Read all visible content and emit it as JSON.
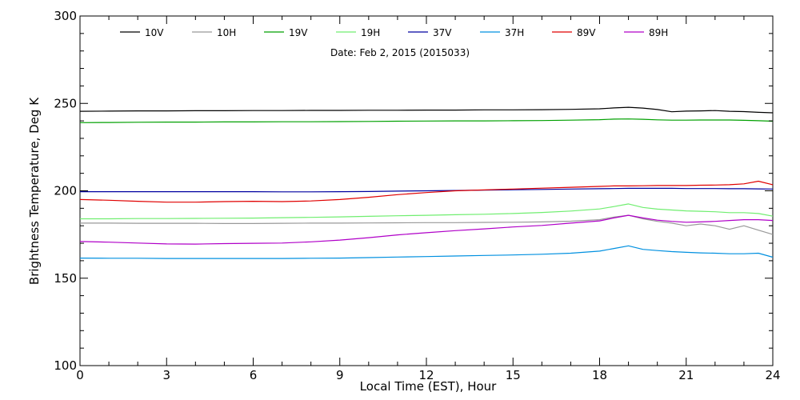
{
  "chart_data": {
    "type": "line",
    "xlabel": "Local Time (EST), Hour",
    "ylabel": "Brightness Temperature, Deg K",
    "annotation": "Date: Feb  2, 2015 (2015033)",
    "xlim": [
      0,
      24
    ],
    "ylim": [
      100,
      300
    ],
    "xticks": [
      0,
      3,
      6,
      9,
      12,
      15,
      18,
      21,
      24
    ],
    "yticks": [
      100,
      150,
      200,
      250,
      300
    ],
    "grid": false,
    "legend_position": "top",
    "x": [
      0,
      1,
      2,
      3,
      4,
      5,
      6,
      7,
      8,
      9,
      10,
      11,
      12,
      13,
      14,
      15,
      16,
      17,
      18,
      18.5,
      19,
      19.5,
      20,
      20.5,
      21,
      21.5,
      22,
      22.5,
      23,
      23.5,
      24
    ],
    "series": [
      {
        "name": "10V",
        "color": "#000000",
        "values": [
          245.5,
          245.6,
          245.7,
          245.7,
          245.8,
          245.8,
          245.9,
          245.9,
          246.0,
          246.0,
          246.1,
          246.1,
          246.2,
          246.2,
          246.3,
          246.3,
          246.4,
          246.6,
          246.9,
          247.4,
          247.8,
          247.3,
          246.5,
          245.2,
          245.6,
          245.7,
          245.9,
          245.5,
          245.3,
          244.9,
          244.6
        ]
      },
      {
        "name": "10H",
        "color": "#999999",
        "values": [
          181.5,
          181.5,
          181.4,
          181.4,
          181.4,
          181.3,
          181.3,
          181.4,
          181.5,
          181.5,
          181.6,
          181.7,
          181.8,
          181.8,
          181.9,
          182.0,
          182.2,
          182.6,
          183.5,
          185.0,
          186.0,
          184.0,
          182.5,
          181.5,
          180.0,
          181.0,
          180.0,
          178.0,
          180.0,
          177.5,
          175.0
        ]
      },
      {
        "name": "19V",
        "color": "#00a000",
        "values": [
          239.0,
          239.1,
          239.2,
          239.3,
          239.3,
          239.4,
          239.4,
          239.5,
          239.5,
          239.6,
          239.7,
          239.8,
          239.9,
          240.0,
          240.0,
          240.1,
          240.2,
          240.4,
          240.7,
          241.0,
          241.1,
          240.9,
          240.6,
          240.4,
          240.4,
          240.5,
          240.5,
          240.5,
          240.3,
          240.1,
          239.8
        ]
      },
      {
        "name": "19H",
        "color": "#70ee70",
        "values": [
          184.0,
          184.0,
          184.1,
          184.1,
          184.2,
          184.3,
          184.4,
          184.6,
          184.8,
          185.1,
          185.4,
          185.7,
          186.0,
          186.3,
          186.6,
          187.0,
          187.6,
          188.4,
          189.6,
          191.0,
          192.5,
          190.5,
          189.5,
          189.0,
          188.5,
          188.3,
          188.0,
          187.5,
          187.5,
          187.0,
          185.5
        ]
      },
      {
        "name": "37V",
        "color": "#0000a0",
        "values": [
          199.5,
          199.5,
          199.5,
          199.5,
          199.5,
          199.5,
          199.5,
          199.4,
          199.4,
          199.5,
          199.6,
          199.8,
          200.0,
          200.2,
          200.4,
          200.6,
          200.8,
          201.0,
          201.2,
          201.3,
          201.4,
          201.4,
          201.4,
          201.4,
          201.3,
          201.3,
          201.3,
          201.2,
          201.2,
          201.1,
          201.0
        ]
      },
      {
        "name": "37H",
        "color": "#0090e0",
        "values": [
          161.5,
          161.4,
          161.4,
          161.3,
          161.3,
          161.3,
          161.3,
          161.3,
          161.4,
          161.5,
          161.8,
          162.1,
          162.4,
          162.7,
          163.0,
          163.3,
          163.7,
          164.3,
          165.5,
          167.0,
          168.5,
          166.5,
          165.8,
          165.2,
          164.8,
          164.5,
          164.3,
          164.0,
          164.0,
          164.3,
          162.0
        ]
      },
      {
        "name": "89V",
        "color": "#e00000",
        "values": [
          195.0,
          194.6,
          194.0,
          193.5,
          193.5,
          193.8,
          194.0,
          193.8,
          194.2,
          195.0,
          196.3,
          197.8,
          199.0,
          200.0,
          200.5,
          201.0,
          201.5,
          202.0,
          202.5,
          202.8,
          202.8,
          202.9,
          203.0,
          203.0,
          203.0,
          203.2,
          203.3,
          203.5,
          204.0,
          205.5,
          203.5
        ]
      },
      {
        "name": "89H",
        "color": "#b000c8",
        "values": [
          171.0,
          170.6,
          170.1,
          169.6,
          169.5,
          169.8,
          170.0,
          170.1,
          170.8,
          171.8,
          173.2,
          174.8,
          176.0,
          177.2,
          178.2,
          179.3,
          180.2,
          181.5,
          182.8,
          184.5,
          186.0,
          184.5,
          183.2,
          182.5,
          182.0,
          182.2,
          182.5,
          183.0,
          183.5,
          183.5,
          183.0
        ]
      }
    ]
  }
}
